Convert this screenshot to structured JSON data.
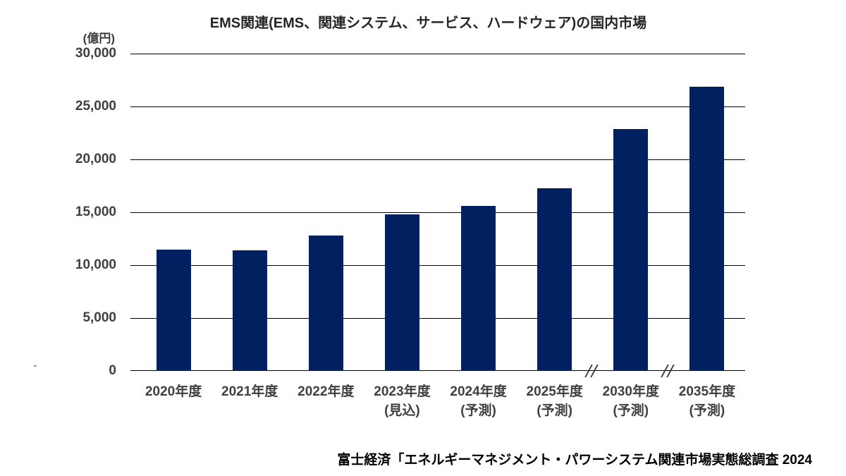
{
  "title": "EMS関連(EMS、関連システム、サービス、ハードウェア)の国内市場",
  "unit_label": "(億円)",
  "source": "富士経済「エネルギーマネジメント・パワーシステム関連市場実態総調査 2024",
  "colors": {
    "bar": "#002060",
    "gridline": "#000000",
    "title_text": "#262626",
    "axis_text": "#404040",
    "source_text": "#000000"
  },
  "chart_data": {
    "type": "bar",
    "title": "EMS関連(EMS、関連システム、サービス、ハードウェア)の国内市場",
    "unit": "億円",
    "categories": [
      "2020年度",
      "2021年度",
      "2022年度",
      "2023年度",
      "2024年度",
      "2025年度",
      "2030年度",
      "2035年度"
    ],
    "category_sublabels": [
      "",
      "",
      "",
      "(見込)",
      "(予測)",
      "(予測)",
      "(予測)",
      "(予測)"
    ],
    "values": [
      11500,
      11400,
      12800,
      14800,
      15600,
      17300,
      22850,
      26850
    ],
    "ylabel": "(億円)",
    "ylim": [
      0,
      30000
    ],
    "ytick_interval": 5000,
    "ytick_labels": [
      "30,000",
      "25,000",
      "20,000",
      "15,000",
      "10,000",
      "5,000",
      "0"
    ],
    "bar_color": "#002060",
    "gridlines": "horizontal",
    "legend_position": "none",
    "axis_breaks_after": [
      "2025年度",
      "2030年度"
    ],
    "source": "富士経済「エネルギーマネジメント・パワーシステム関連市場実態総調査 2024"
  }
}
